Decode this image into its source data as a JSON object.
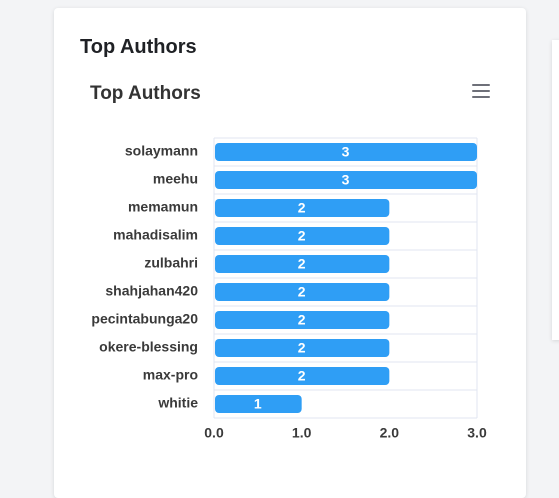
{
  "card": {
    "title": "Top Authors"
  },
  "chart_data": {
    "type": "bar",
    "orientation": "horizontal",
    "title": "Top Authors",
    "categories": [
      "solaymann",
      "meehu",
      "memamun",
      "mahadisalim",
      "zulbahri",
      "shahjahan420",
      "pecintabunga20",
      "okere-blessing",
      "max-pro",
      "whitie"
    ],
    "values": [
      3,
      3,
      2,
      2,
      2,
      2,
      2,
      2,
      2,
      1
    ],
    "xlim": [
      0,
      3
    ],
    "xticks": [
      "0.0",
      "1.0",
      "2.0",
      "3.0"
    ],
    "data_labels": true,
    "grid": true,
    "bar_color": "#2f9ef5",
    "xlabel": "",
    "ylabel": ""
  },
  "icons": {
    "menu": "hamburger-menu-icon"
  }
}
